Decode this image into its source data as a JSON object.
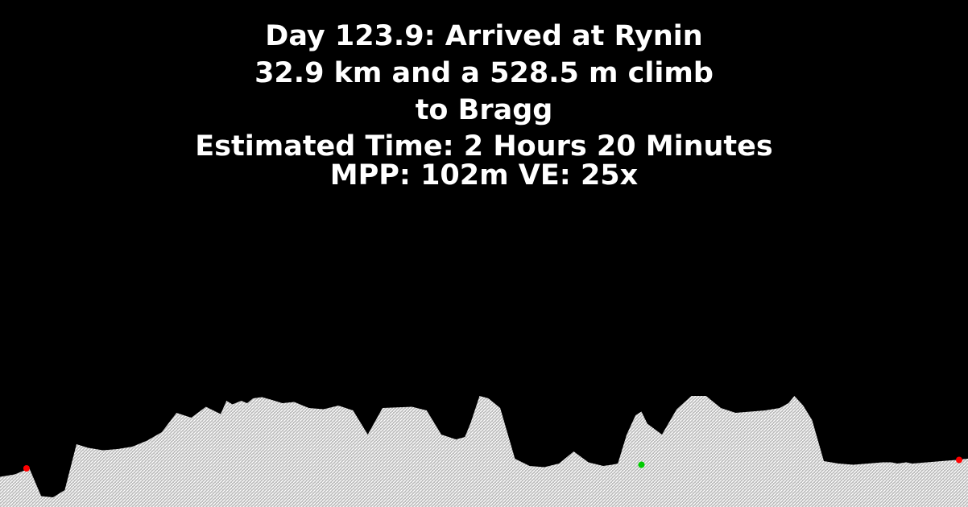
{
  "title_lines": {
    "line1": "Day 123.9: Arrived at Rynin",
    "line2": "32.9 km and a 528.5 m climb",
    "line3": "to Bragg",
    "line4": "Estimated Time: 2 Hours 20 Minutes",
    "line5": "MPP: 102m VE: 25x"
  },
  "colors": {
    "background": "#000000",
    "text": "#ffffff",
    "profile_fill": "#e0e0e0",
    "profile_hatch": "#ffffff",
    "start_marker": "#ff0000",
    "mid_marker": "#00cc00",
    "end_marker": "#ff0000"
  },
  "chart_data": {
    "type": "area",
    "title": "",
    "xlabel": "",
    "ylabel": "",
    "grid": false,
    "legend": "none",
    "x_unit": "km",
    "y_unit": "m",
    "x": [
      0,
      0.5,
      1.0,
      1.4,
      1.8,
      2.2,
      2.6,
      3.0,
      3.5,
      4.0,
      4.5,
      5.0,
      5.5,
      6.0,
      6.5,
      7.0,
      7.5,
      7.7,
      7.9,
      8.2,
      8.4,
      8.6,
      8.9,
      9.2,
      9.6,
      10.0,
      10.5,
      11.0,
      11.5,
      12.0,
      12.5,
      13.0,
      14.0,
      14.5,
      15.0,
      15.5,
      15.8,
      16.0,
      16.3,
      16.6,
      17.0,
      17.5,
      18.0,
      18.5,
      19.0,
      19.5,
      20.0,
      20.5,
      20.8,
      21.0,
      21.3,
      21.6,
      21.8,
      22.0,
      22.5,
      23.0,
      23.5,
      24.0,
      24.5,
      25.0,
      25.5,
      26.0,
      26.5,
      26.8,
      27.0,
      27.3,
      27.6,
      28.0,
      28.5,
      29.0,
      29.5,
      30.0,
      30.3,
      30.5,
      30.8,
      31.0,
      31.5,
      32.0,
      32.5,
      32.9
    ],
    "y": [
      125,
      135,
      160,
      45,
      40,
      70,
      260,
      245,
      235,
      240,
      250,
      275,
      310,
      390,
      370,
      415,
      385,
      440,
      425,
      440,
      430,
      450,
      455,
      445,
      430,
      435,
      410,
      405,
      420,
      400,
      300,
      410,
      415,
      400,
      300,
      280,
      290,
      350,
      460,
      450,
      410,
      200,
      170,
      165,
      180,
      230,
      185,
      170,
      175,
      180,
      300,
      380,
      395,
      345,
      300,
      405,
      460,
      460,
      410,
      390,
      395,
      400,
      410,
      430,
      460,
      420,
      360,
      190,
      180,
      175,
      180,
      185,
      185,
      180,
      185,
      180,
      185,
      190,
      195,
      200
    ],
    "markers": [
      {
        "x": 0.9,
        "y": 160,
        "color": "red"
      },
      {
        "x": 21.8,
        "y": 175,
        "color": "green"
      },
      {
        "x": 32.6,
        "y": 195,
        "color": "red"
      }
    ]
  }
}
